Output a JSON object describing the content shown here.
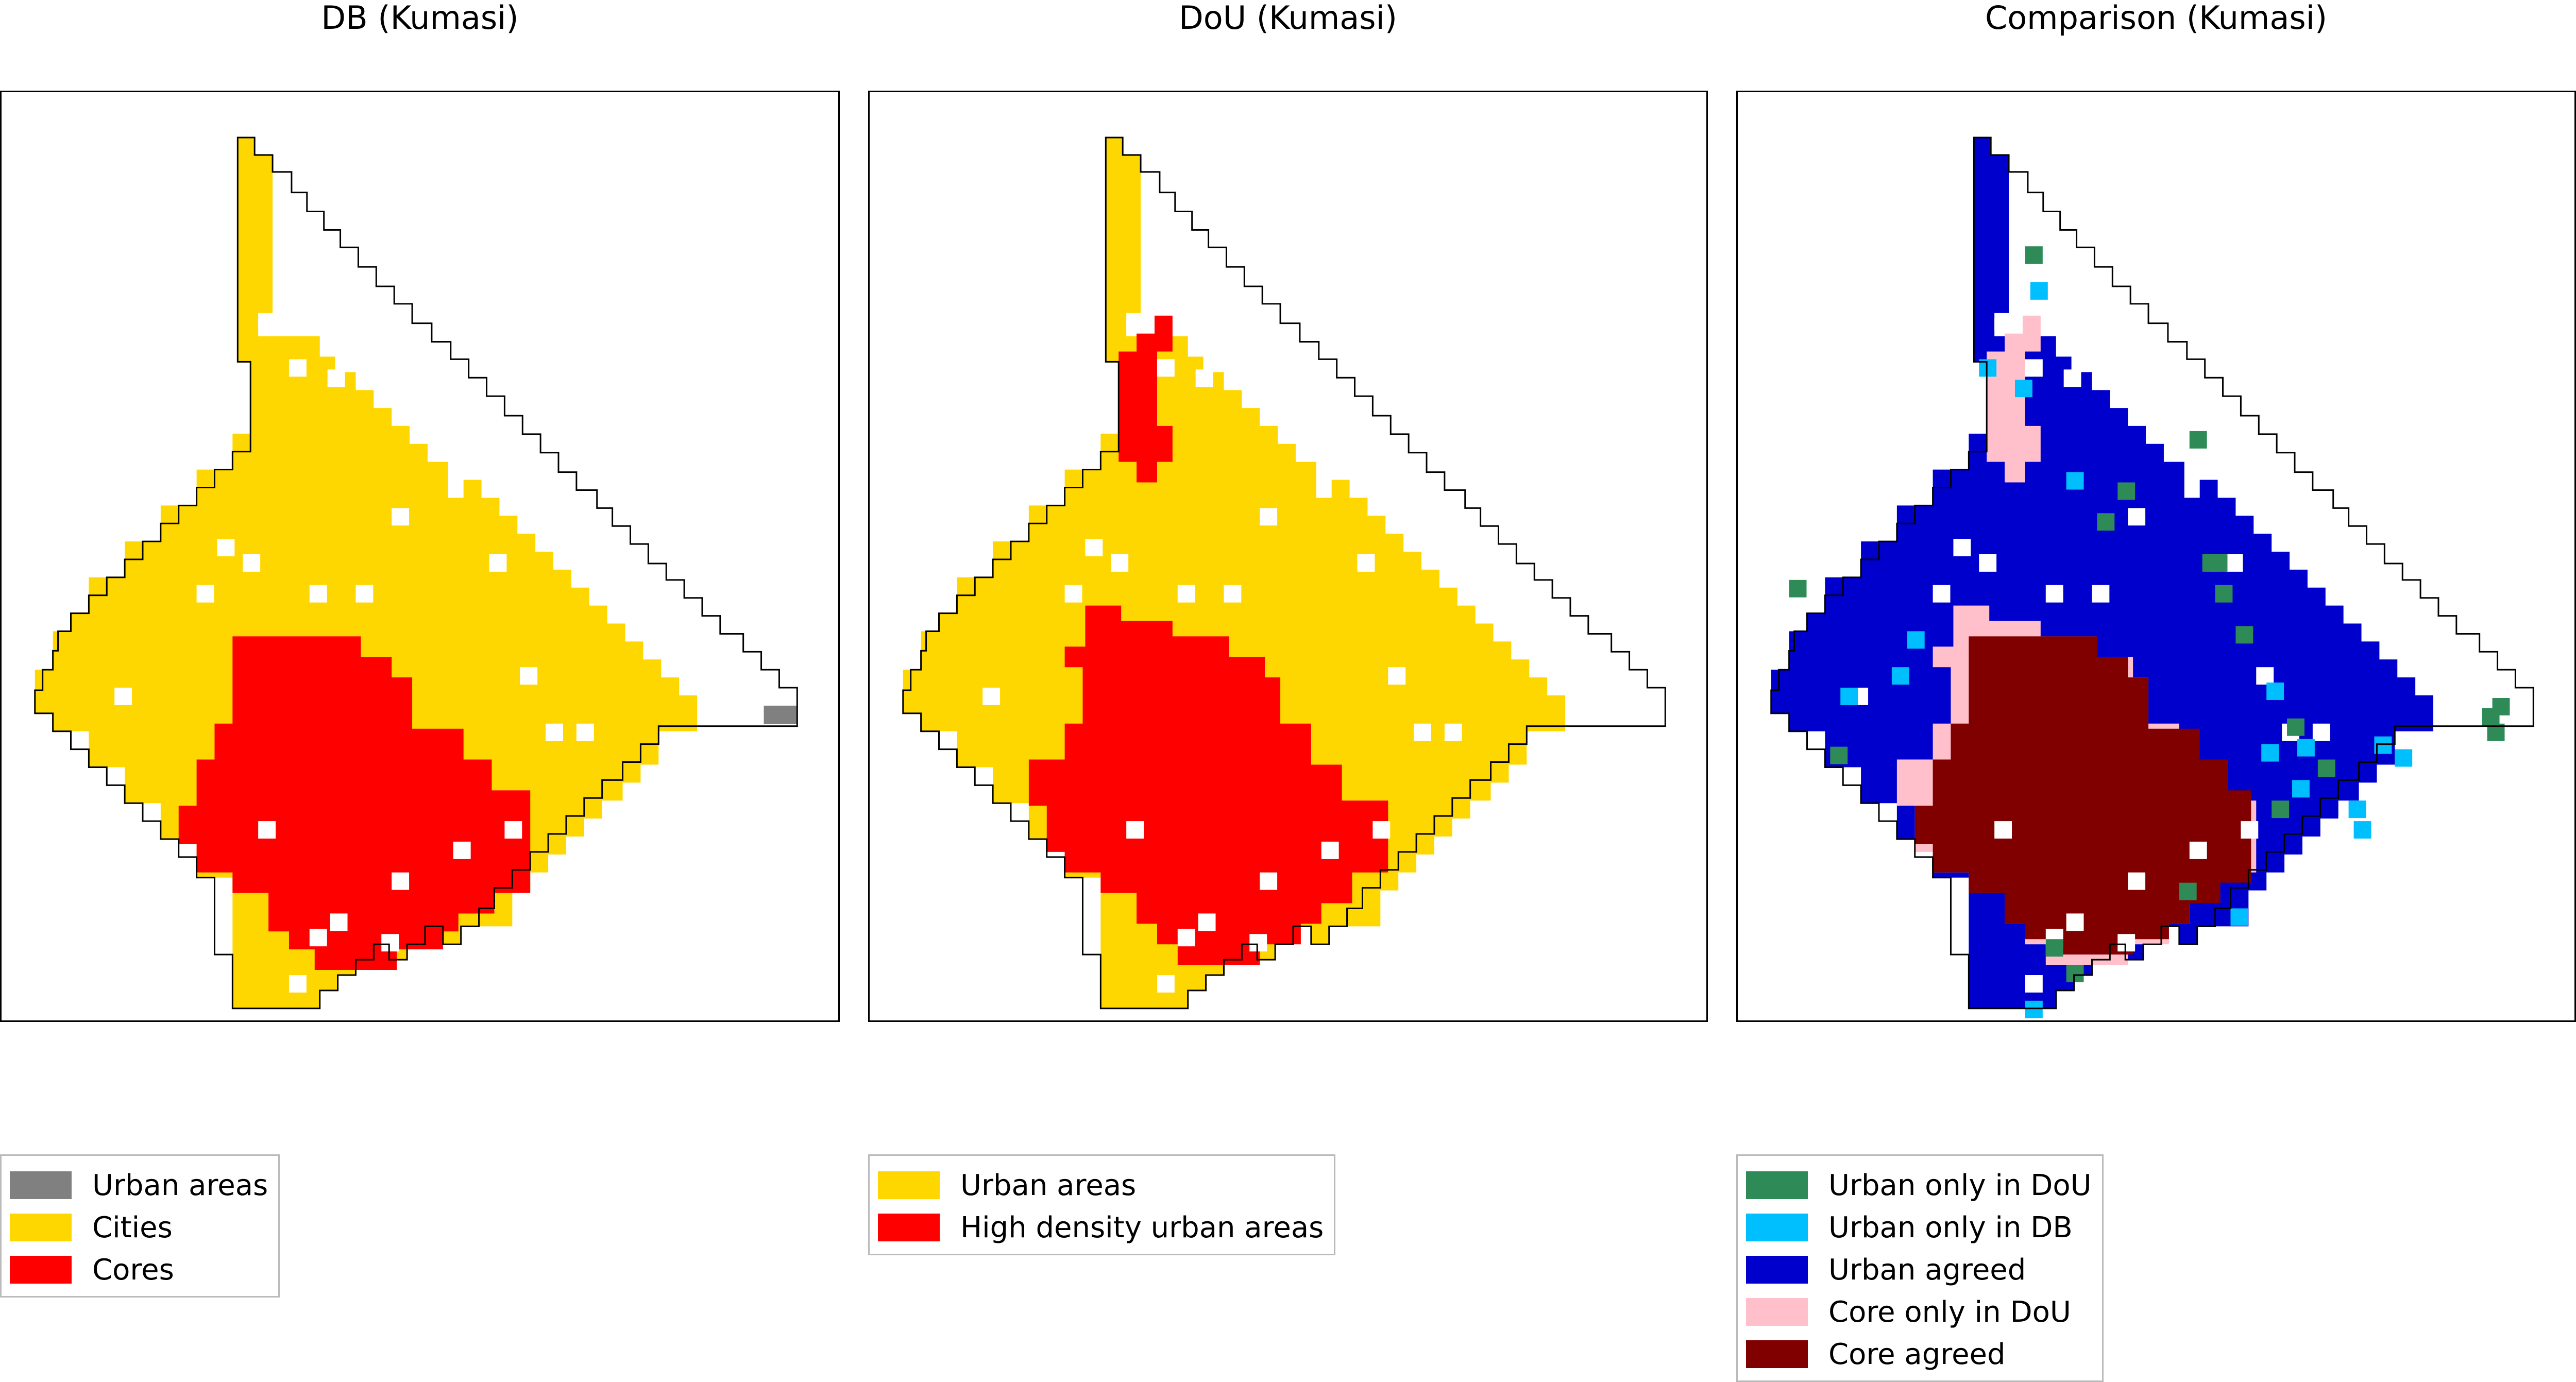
{
  "panels": [
    {
      "title": "DB (Kumasi)",
      "legend": [
        {
          "label": "Urban areas",
          "color": "#808080"
        },
        {
          "label": "Cities",
          "color": "#FFD700"
        },
        {
          "label": "Cores",
          "color": "#FF0000"
        }
      ]
    },
    {
      "title": "DoU (Kumasi)",
      "legend": [
        {
          "label": "Urban areas",
          "color": "#FFD700"
        },
        {
          "label": "High density urban areas",
          "color": "#FF0000"
        }
      ]
    },
    {
      "title": "Comparison (Kumasi)",
      "legend": [
        {
          "label": "Urban only in DoU",
          "color": "#2E8B57"
        },
        {
          "label": "Urban only in DB",
          "color": "#00BFFF"
        },
        {
          "label": "Urban agreed",
          "color": "#0000CD"
        },
        {
          "label": "Core only in DoU",
          "color": "#FFC0CB"
        },
        {
          "label": "Core agreed",
          "color": "#800000"
        }
      ]
    }
  ]
}
